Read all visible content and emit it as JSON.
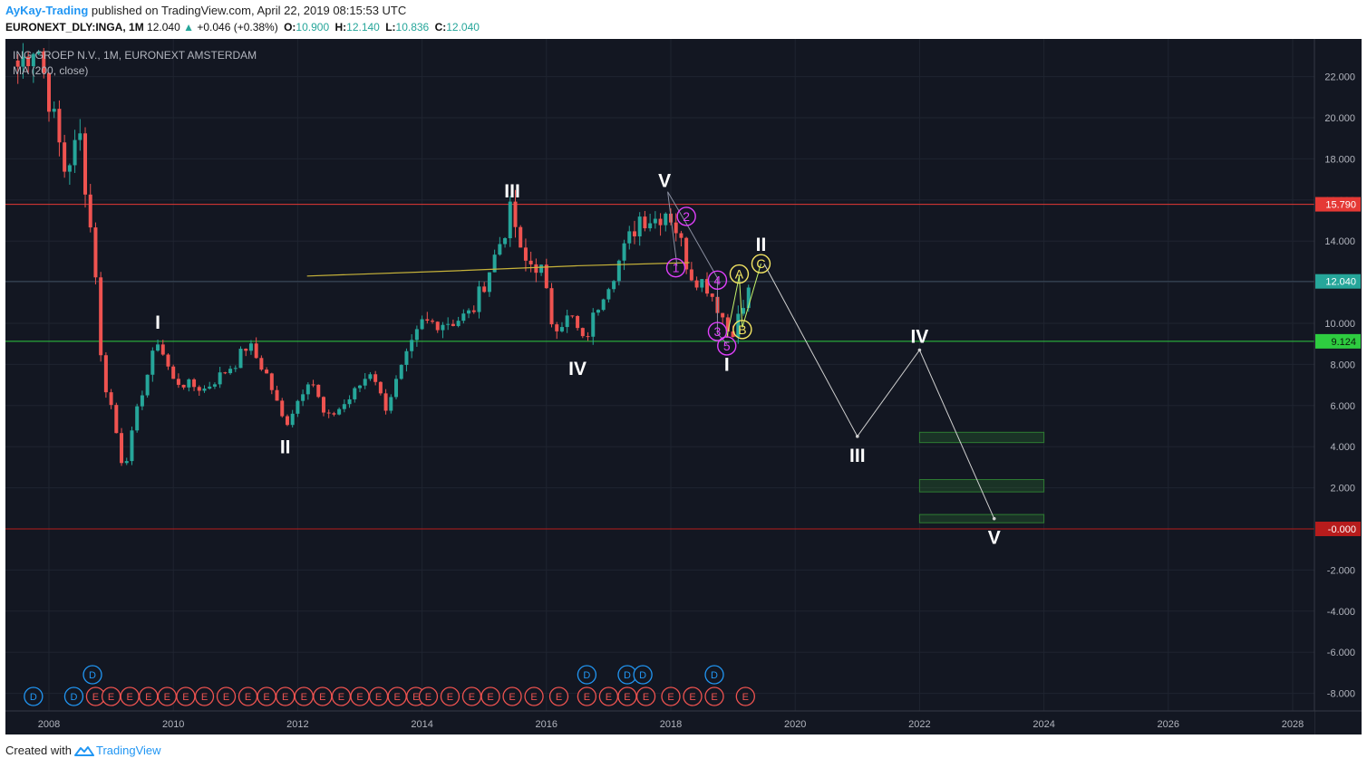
{
  "header": {
    "author": "AyKay-Trading",
    "published_text": "published on TradingView.com, April 22, 2019 08:15:53 UTC",
    "symbol": "EURONEXT_DLY:INGA, 1M",
    "last": "12.040",
    "change_arrow": "▲",
    "change": "+0.046 (+0.38%)",
    "o_label": "O:",
    "o_value": "10.900",
    "h_label": "H:",
    "h_value": "12.140",
    "l_label": "L:",
    "l_value": "10.836",
    "c_label": "C:",
    "c_value": "12.040"
  },
  "legend": {
    "title": "ING GROEP N.V., 1M, EURONEXT AMSTERDAM",
    "indicator": "MA (200, close)"
  },
  "footer": {
    "created_with": "Created with",
    "brand": "TradingView"
  },
  "colors": {
    "background": "#131722",
    "up": "#26a69a",
    "down": "#ef5350",
    "ma": "#c8b43a",
    "resistance": "#e53935",
    "support": "#2ecc40",
    "zero_line": "#b71c1c",
    "projection": "#d0d0d0",
    "wave_minor": "#e040fb",
    "wave_abc": "#f5e663",
    "zones": "#1b5e20"
  },
  "chart_data": {
    "type": "candlestick",
    "timeframe": "1M",
    "x_range": [
      2007.4,
      2029.0
    ],
    "ylim": [
      -8.7,
      23.8
    ],
    "x_ticks": [
      "2008",
      "2010",
      "2012",
      "2014",
      "2016",
      "2018",
      "2020",
      "2022",
      "2024",
      "2026",
      "2028"
    ],
    "y_ticks": [
      "22.000",
      "20.000",
      "18.000",
      "16.000",
      "14.000",
      "12.000",
      "10.000",
      "8.000",
      "6.000",
      "4.000",
      "2.000",
      "-0.000",
      "-2.000",
      "-4.000",
      "-6.000",
      "-8.000"
    ],
    "price_markers": [
      {
        "value": 15.79,
        "label": "15.790",
        "color": "#e53935"
      },
      {
        "value": 12.04,
        "label": "12.040",
        "color": "#26a69a"
      },
      {
        "value": 9.124,
        "label": "9.124",
        "color": "#2ecc40"
      },
      {
        "value": 0.0,
        "label": "-0.000",
        "color": "#b71c1c"
      }
    ],
    "horizontal_lines": [
      {
        "value": 15.79,
        "color": "#e53935"
      },
      {
        "value": 9.124,
        "color": "#2ecc40"
      },
      {
        "value": 0.0,
        "color": "#b71c1c"
      },
      {
        "value": 12.04,
        "color": "#3b4a5a"
      }
    ],
    "anchors": [
      [
        2007.5,
        22.5
      ],
      [
        2007.8,
        23.8
      ],
      [
        2008.0,
        21.0
      ],
      [
        2008.25,
        17.5
      ],
      [
        2008.5,
        19.0
      ],
      [
        2008.75,
        12.5
      ],
      [
        2008.85,
        7.5
      ],
      [
        2009.0,
        6.0
      ],
      [
        2009.2,
        2.8
      ],
      [
        2009.45,
        6.2
      ],
      [
        2009.75,
        9.2
      ],
      [
        2010.0,
        7.2
      ],
      [
        2010.5,
        6.8
      ],
      [
        2011.0,
        8.1
      ],
      [
        2011.2,
        9.0
      ],
      [
        2011.5,
        7.5
      ],
      [
        2011.8,
        5.0
      ],
      [
        2012.2,
        7.5
      ],
      [
        2012.45,
        5.3
      ],
      [
        2012.8,
        6.2
      ],
      [
        2013.0,
        7.0
      ],
      [
        2013.2,
        7.8
      ],
      [
        2013.4,
        5.8
      ],
      [
        2013.7,
        8.0
      ],
      [
        2014.0,
        10.0
      ],
      [
        2014.5,
        10.1
      ],
      [
        2014.8,
        10.5
      ],
      [
        2015.2,
        13.5
      ],
      [
        2015.45,
        15.6
      ],
      [
        2015.6,
        13.0
      ],
      [
        2015.9,
        12.8
      ],
      [
        2016.1,
        9.9
      ],
      [
        2016.4,
        10.3
      ],
      [
        2016.6,
        9.0
      ],
      [
        2016.9,
        11.5
      ],
      [
        2017.2,
        13.2
      ],
      [
        2017.5,
        15.2
      ],
      [
        2017.75,
        15.1
      ],
      [
        2017.95,
        15.6
      ],
      [
        2018.1,
        14.5
      ],
      [
        2018.3,
        12.5
      ],
      [
        2018.6,
        11.8
      ],
      [
        2018.85,
        10.2
      ],
      [
        2018.95,
        9.4
      ],
      [
        2019.2,
        11.0
      ],
      [
        2019.3,
        12.04
      ]
    ],
    "ma": {
      "name": "MA (200, close)",
      "points": [
        [
          2012.15,
          12.3
        ],
        [
          2014.5,
          12.55
        ],
        [
          2016.5,
          12.8
        ],
        [
          2018.3,
          12.95
        ]
      ]
    },
    "projection": {
      "points": [
        [
          2019.5,
          12.9
        ],
        [
          2021.0,
          4.5
        ],
        [
          2022.0,
          8.7
        ],
        [
          2023.2,
          0.5
        ]
      ],
      "labels": [
        {
          "text": "III",
          "x": 2021.0,
          "y": 4.5
        },
        {
          "text": "IV",
          "x": 2022.0,
          "y": 8.7
        },
        {
          "text": "V",
          "x": 2023.2,
          "y": 0.5
        }
      ]
    },
    "target_zones": [
      {
        "x0": 2022.0,
        "x1": 2024.0,
        "y0": 4.2,
        "y1": 4.7
      },
      {
        "x0": 2022.0,
        "x1": 2024.0,
        "y0": 1.8,
        "y1": 2.4
      },
      {
        "x0": 2022.0,
        "x1": 2024.0,
        "y0": 0.3,
        "y1": 0.7
      }
    ],
    "wave_labels": [
      {
        "text": "I",
        "x": 2009.75,
        "y": 9.2,
        "pos": "above"
      },
      {
        "text": "II",
        "x": 2011.8,
        "y": 5.0,
        "pos": "below"
      },
      {
        "text": "III",
        "x": 2015.45,
        "y": 15.6,
        "pos": "above"
      },
      {
        "text": "IV",
        "x": 2016.5,
        "y": 8.8,
        "pos": "below"
      },
      {
        "text": "V",
        "x": 2017.9,
        "y": 16.1,
        "pos": "above"
      },
      {
        "text": "I",
        "x": 2018.9,
        "y": 9.0,
        "pos": "below"
      },
      {
        "text": "II",
        "x": 2019.45,
        "y": 13.0,
        "pos": "above"
      }
    ],
    "minor_labels": [
      {
        "text": "1",
        "x": 2018.08,
        "y": 12.7
      },
      {
        "text": "2",
        "x": 2018.25,
        "y": 15.2
      },
      {
        "text": "3",
        "x": 2018.75,
        "y": 9.6
      },
      {
        "text": "4",
        "x": 2018.75,
        "y": 12.1
      },
      {
        "text": "5",
        "x": 2018.9,
        "y": 8.9
      }
    ],
    "abc_labels": [
      {
        "text": "A",
        "x": 2019.1,
        "y": 12.4
      },
      {
        "text": "B",
        "x": 2019.15,
        "y": 9.7
      },
      {
        "text": "C",
        "x": 2019.45,
        "y": 12.9
      }
    ],
    "minor_path": [
      [
        2018.1,
        12.8
      ],
      [
        2017.95,
        16.4
      ],
      [
        2018.3,
        14.6
      ],
      [
        2018.75,
        12.2
      ],
      [
        2018.75,
        9.5
      ],
      [
        2018.9,
        9.0
      ]
    ],
    "abc_path": [
      [
        2018.9,
        9.3
      ],
      [
        2019.1,
        12.3
      ],
      [
        2019.15,
        9.8
      ],
      [
        2019.45,
        12.9
      ]
    ],
    "events": {
      "row_top": [
        {
          "x": 2008.7,
          "t": "D"
        },
        {
          "x": 2016.65,
          "t": "D"
        },
        {
          "x": 2017.3,
          "t": "D"
        },
        {
          "x": 2017.55,
          "t": "D"
        },
        {
          "x": 2018.7,
          "t": "D"
        }
      ],
      "row_bottom": [
        {
          "x": 2007.75,
          "t": "D"
        },
        {
          "x": 2008.4,
          "t": "D"
        },
        {
          "x": 2008.75,
          "t": "E"
        },
        {
          "x": 2009.0,
          "t": "E"
        },
        {
          "x": 2009.3,
          "t": "E"
        },
        {
          "x": 2009.6,
          "t": "E"
        },
        {
          "x": 2009.9,
          "t": "E"
        },
        {
          "x": 2010.2,
          "t": "E"
        },
        {
          "x": 2010.5,
          "t": "E"
        },
        {
          "x": 2010.85,
          "t": "E"
        },
        {
          "x": 2011.2,
          "t": "E"
        },
        {
          "x": 2011.5,
          "t": "E"
        },
        {
          "x": 2011.8,
          "t": "E"
        },
        {
          "x": 2012.1,
          "t": "E"
        },
        {
          "x": 2012.4,
          "t": "E"
        },
        {
          "x": 2012.7,
          "t": "E"
        },
        {
          "x": 2013.0,
          "t": "E"
        },
        {
          "x": 2013.3,
          "t": "E"
        },
        {
          "x": 2013.6,
          "t": "E"
        },
        {
          "x": 2013.9,
          "t": "E"
        },
        {
          "x": 2014.1,
          "t": "E"
        },
        {
          "x": 2014.45,
          "t": "E"
        },
        {
          "x": 2014.8,
          "t": "E"
        },
        {
          "x": 2015.1,
          "t": "E"
        },
        {
          "x": 2015.45,
          "t": "E"
        },
        {
          "x": 2015.8,
          "t": "E"
        },
        {
          "x": 2016.2,
          "t": "E"
        },
        {
          "x": 2016.65,
          "t": "E"
        },
        {
          "x": 2017.0,
          "t": "E"
        },
        {
          "x": 2017.3,
          "t": "E"
        },
        {
          "x": 2017.6,
          "t": "E"
        },
        {
          "x": 2018.0,
          "t": "E"
        },
        {
          "x": 2018.35,
          "t": "E"
        },
        {
          "x": 2018.7,
          "t": "E"
        },
        {
          "x": 2019.2,
          "t": "E"
        }
      ]
    }
  }
}
